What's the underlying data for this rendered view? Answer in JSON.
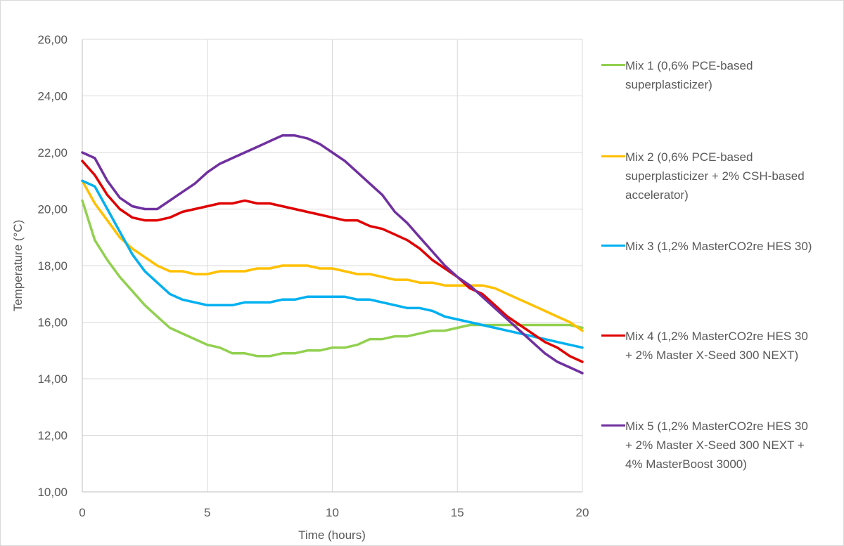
{
  "chart_data": {
    "type": "line",
    "title": "",
    "xlabel": "Time (hours)",
    "ylabel": "Temperature (°C)",
    "xlim": [
      0,
      20
    ],
    "ylim": [
      10,
      26
    ],
    "xticks": [
      "0",
      "5",
      "10",
      "15",
      "20"
    ],
    "xtick_values": [
      0,
      5,
      10,
      15,
      20
    ],
    "yticks": [
      "10,00",
      "12,00",
      "14,00",
      "16,00",
      "18,00",
      "20,00",
      "22,00",
      "24,00",
      "26,00"
    ],
    "ytick_values": [
      10,
      12,
      14,
      16,
      18,
      20,
      22,
      24,
      26
    ],
    "grid": true,
    "legend_position": "right",
    "x": [
      0,
      0.5,
      1,
      1.5,
      2,
      2.5,
      3,
      3.5,
      4,
      4.5,
      5,
      5.5,
      6,
      6.5,
      7,
      7.5,
      8,
      8.5,
      9,
      9.5,
      10,
      10.5,
      11,
      11.5,
      12,
      12.5,
      13,
      13.5,
      14,
      14.5,
      15,
      15.5,
      16,
      16.5,
      17,
      17.5,
      18,
      18.5,
      19,
      19.5,
      20
    ],
    "series": [
      {
        "name": "Mix 1 (0,6% PCE-based\nsuperplasticizer)",
        "color": "#92D050",
        "values": [
          20.3,
          18.9,
          18.2,
          17.6,
          17.1,
          16.6,
          16.2,
          15.8,
          15.6,
          15.4,
          15.2,
          15.1,
          14.9,
          14.9,
          14.8,
          14.8,
          14.9,
          14.9,
          15.0,
          15.0,
          15.1,
          15.1,
          15.2,
          15.4,
          15.4,
          15.5,
          15.5,
          15.6,
          15.7,
          15.7,
          15.8,
          15.9,
          15.9,
          15.9,
          15.9,
          15.9,
          15.9,
          15.9,
          15.9,
          15.9,
          15.8
        ]
      },
      {
        "name": "Mix 2 (0,6% PCE-based\nsuperplasticizer + 2% CSH-based\naccelerator)",
        "color": "#FFC000",
        "values": [
          21.0,
          20.2,
          19.6,
          19.0,
          18.6,
          18.3,
          18.0,
          17.8,
          17.8,
          17.7,
          17.7,
          17.8,
          17.8,
          17.8,
          17.9,
          17.9,
          18.0,
          18.0,
          18.0,
          17.9,
          17.9,
          17.8,
          17.7,
          17.7,
          17.6,
          17.5,
          17.5,
          17.4,
          17.4,
          17.3,
          17.3,
          17.3,
          17.3,
          17.2,
          17.0,
          16.8,
          16.6,
          16.4,
          16.2,
          16.0,
          15.7
        ]
      },
      {
        "name": "Mix 3 (1,2% MasterCO2re HES 30)",
        "color": "#00B0F0",
        "values": [
          21.0,
          20.8,
          20.0,
          19.2,
          18.4,
          17.8,
          17.4,
          17.0,
          16.8,
          16.7,
          16.6,
          16.6,
          16.6,
          16.7,
          16.7,
          16.7,
          16.8,
          16.8,
          16.9,
          16.9,
          16.9,
          16.9,
          16.8,
          16.8,
          16.7,
          16.6,
          16.5,
          16.5,
          16.4,
          16.2,
          16.1,
          16.0,
          15.9,
          15.8,
          15.7,
          15.6,
          15.5,
          15.4,
          15.3,
          15.2,
          15.1
        ]
      },
      {
        "name": "Mix 4 (1,2% MasterCO2re HES 30\n+ 2% Master X-Seed 300 NEXT)",
        "color": "#E00000",
        "values": [
          21.7,
          21.2,
          20.5,
          20.0,
          19.7,
          19.6,
          19.6,
          19.7,
          19.9,
          20.0,
          20.1,
          20.2,
          20.2,
          20.3,
          20.2,
          20.2,
          20.1,
          20.0,
          19.9,
          19.8,
          19.7,
          19.6,
          19.6,
          19.4,
          19.3,
          19.1,
          18.9,
          18.6,
          18.2,
          17.9,
          17.6,
          17.2,
          17.0,
          16.6,
          16.2,
          15.9,
          15.6,
          15.3,
          15.1,
          14.8,
          14.6
        ]
      },
      {
        "name": "Mix 5 (1,2% MasterCO2re HES 30\n+ 2% Master X-Seed 300 NEXT +\n4% MasterBoost 3000)",
        "color": "#7030A0",
        "values": [
          22.0,
          21.8,
          21.0,
          20.4,
          20.1,
          20.0,
          20.0,
          20.3,
          20.6,
          20.9,
          21.3,
          21.6,
          21.8,
          22.0,
          22.2,
          22.4,
          22.6,
          22.6,
          22.5,
          22.3,
          22.0,
          21.7,
          21.3,
          20.9,
          20.5,
          19.9,
          19.5,
          19.0,
          18.5,
          18.0,
          17.6,
          17.3,
          16.9,
          16.5,
          16.1,
          15.7,
          15.3,
          14.9,
          14.6,
          14.4,
          14.2
        ]
      }
    ]
  }
}
